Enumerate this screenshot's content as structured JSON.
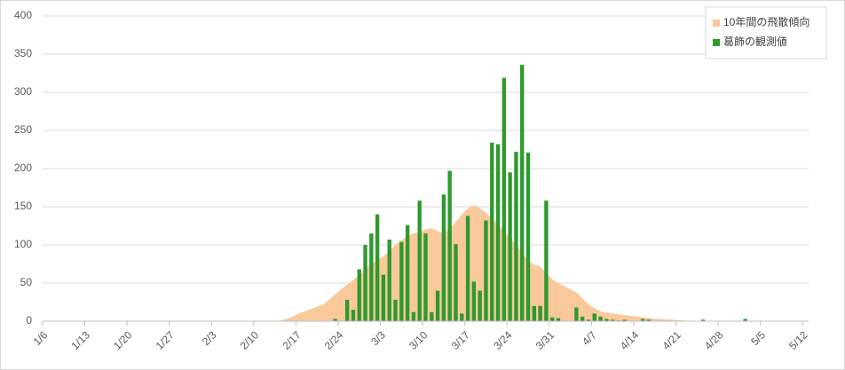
{
  "chart_data": {
    "type": "bar",
    "categories": [
      "1/6",
      null,
      null,
      null,
      null,
      null,
      null,
      "1/13",
      null,
      null,
      null,
      null,
      null,
      null,
      "1/20",
      null,
      null,
      null,
      null,
      null,
      null,
      "1/27",
      null,
      null,
      null,
      null,
      null,
      null,
      "2/3",
      null,
      null,
      null,
      null,
      null,
      null,
      "2/10",
      null,
      null,
      null,
      null,
      null,
      null,
      "2/17",
      null,
      null,
      null,
      null,
      null,
      null,
      "2/24",
      null,
      null,
      null,
      null,
      null,
      null,
      "3/3",
      null,
      null,
      null,
      null,
      null,
      null,
      "3/10",
      null,
      null,
      null,
      null,
      null,
      null,
      "3/17",
      null,
      null,
      null,
      null,
      null,
      null,
      "3/24",
      null,
      null,
      null,
      null,
      null,
      null,
      "3/31",
      null,
      null,
      null,
      null,
      null,
      null,
      "4/7",
      null,
      null,
      null,
      null,
      null,
      null,
      "4/14",
      null,
      null,
      null,
      null,
      null,
      null,
      "4/21",
      null,
      null,
      null,
      null,
      null,
      null,
      "4/28",
      null,
      null,
      null,
      null,
      null,
      null,
      "5/5",
      null,
      null,
      null,
      null,
      null,
      null,
      "5/12"
    ],
    "series": [
      {
        "name": "10年間の飛散傾向",
        "type": "area",
        "color": "#f9c99b",
        "values": [
          0,
          0,
          0,
          0,
          0,
          0,
          0,
          0,
          0,
          0,
          0,
          0,
          0,
          0,
          0,
          0,
          0,
          0,
          0,
          0,
          0,
          0,
          0,
          0,
          0,
          0,
          0,
          0,
          0,
          0,
          0,
          0,
          0,
          0,
          0,
          0,
          0,
          0,
          0,
          1,
          3,
          6,
          10,
          13,
          16,
          19,
          22,
          28,
          35,
          42,
          48,
          54,
          60,
          68,
          75,
          80,
          85,
          92,
          100,
          106,
          112,
          115,
          117,
          120,
          122,
          118,
          115,
          122,
          130,
          140,
          148,
          152,
          148,
          142,
          135,
          126,
          118,
          109,
          100,
          90,
          80,
          74,
          72,
          63,
          55,
          50,
          46,
          42,
          38,
          30,
          22,
          17,
          13,
          11,
          10,
          9,
          8,
          7,
          6,
          5,
          4,
          3,
          3,
          2,
          2,
          1,
          1,
          0,
          0,
          0,
          0,
          0,
          0,
          0,
          0,
          0,
          0,
          0,
          0,
          0,
          0,
          0,
          0,
          0,
          0,
          0,
          0
        ]
      },
      {
        "name": "葛飾の観測値",
        "type": "bar",
        "color": "#2e9a2e",
        "values": [
          0,
          0,
          0,
          0,
          0,
          0,
          0,
          0,
          0,
          0,
          0,
          0,
          0,
          0,
          0,
          0,
          0,
          0,
          0,
          0,
          0,
          0,
          0,
          0,
          0,
          0,
          0,
          0,
          0,
          0,
          0,
          0,
          0,
          0,
          0,
          0,
          0,
          0,
          0,
          0,
          0,
          0,
          0,
          0,
          0,
          0,
          0,
          0,
          3,
          0,
          28,
          15,
          68,
          100,
          115,
          140,
          61,
          107,
          28,
          104,
          126,
          12,
          158,
          115,
          12,
          40,
          166,
          197,
          101,
          10,
          138,
          52,
          40,
          132,
          234,
          232,
          319,
          195,
          222,
          336,
          221,
          20,
          20,
          158,
          5,
          4,
          0,
          0,
          18,
          6,
          2,
          10,
          6,
          3,
          2,
          1,
          2,
          0,
          0,
          3,
          2,
          0,
          0,
          0,
          0,
          0,
          0,
          0,
          0,
          2,
          0,
          0,
          0,
          0,
          0,
          0,
          3,
          0,
          0,
          0,
          0,
          0,
          0,
          0,
          0,
          0,
          0
        ]
      }
    ],
    "ylim": [
      0,
      400
    ],
    "yticks": [
      0,
      50,
      100,
      150,
      200,
      250,
      300,
      350,
      400
    ],
    "grid": true,
    "legend": "top-right"
  }
}
